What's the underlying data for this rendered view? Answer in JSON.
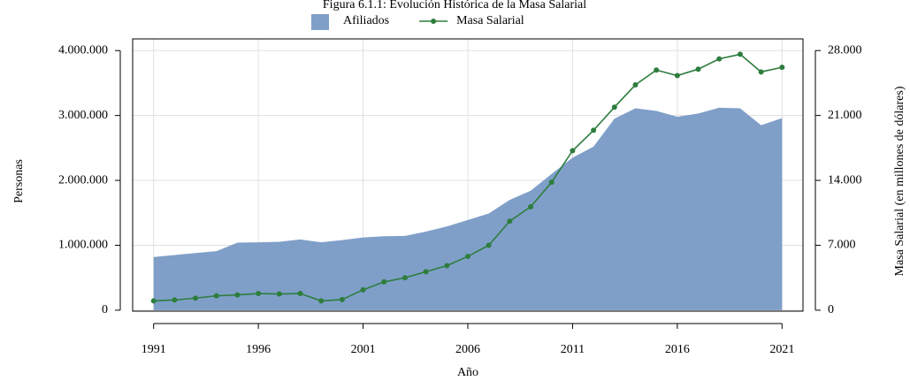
{
  "chart_data": {
    "type": "line",
    "title": "Figura 6.1.1: Evolución Histórica de la Masa Salarial",
    "x_label": "Año",
    "y_label": "Personas",
    "y2_label": "Masa Salarial (en millones de dólares)",
    "x": [
      1991,
      1992,
      1993,
      1994,
      1995,
      1996,
      1997,
      1998,
      1999,
      2000,
      2001,
      2002,
      2003,
      2004,
      2005,
      2006,
      2007,
      2008,
      2009,
      2010,
      2011,
      2012,
      2013,
      2014,
      2015,
      2016,
      2017,
      2018,
      2019,
      2020,
      2021
    ],
    "series": [
      {
        "name": "Afiliados",
        "type": "area",
        "color": "#7f9fc8",
        "values": [
          820000,
          850000,
          880000,
          910000,
          1040000,
          1045000,
          1055000,
          1090000,
          1045000,
          1080000,
          1120000,
          1140000,
          1145000,
          1210000,
          1290000,
          1390000,
          1490000,
          1700000,
          1840000,
          2100000,
          2350000,
          2520000,
          2950000,
          3110000,
          3070000,
          2980000,
          3030000,
          3120000,
          3110000,
          2850000,
          2960000
        ]
      },
      {
        "name": "Masa Salarial",
        "type": "line",
        "axis": "y2",
        "color": "#2e7d3e",
        "values": [
          1000,
          1100,
          1300,
          1550,
          1650,
          1800,
          1750,
          1800,
          1000,
          1150,
          2200,
          3050,
          3500,
          4150,
          4800,
          5800,
          7000,
          9600,
          11150,
          13800,
          17200,
          19400,
          21900,
          24300,
          25900,
          25300,
          26000,
          27100,
          27600,
          25700,
          26200
        ]
      }
    ],
    "xlim": [
      1990,
      2022
    ],
    "xticks": [
      1991,
      1996,
      2001,
      2006,
      2011,
      2016,
      2021
    ],
    "ylim": [
      -15000,
      4180000
    ],
    "yticks": [
      0,
      {
        "value": 1000000,
        "label": "1.000.000"
      },
      {
        "value": 2000000,
        "label": "2.000.000"
      },
      {
        "value": 3000000,
        "label": "3.000.000"
      },
      {
        "value": 4000000,
        "label": "4.000.000"
      }
    ],
    "y2lim": [
      -105,
      29260
    ],
    "y2ticks": [
      0,
      {
        "value": 7000,
        "label": "7.000"
      },
      {
        "value": 14000,
        "label": "14.000"
      },
      {
        "value": 21000,
        "label": "21.000"
      },
      {
        "value": 28000,
        "label": "28.000"
      }
    ],
    "grid": true,
    "legend": "top"
  }
}
